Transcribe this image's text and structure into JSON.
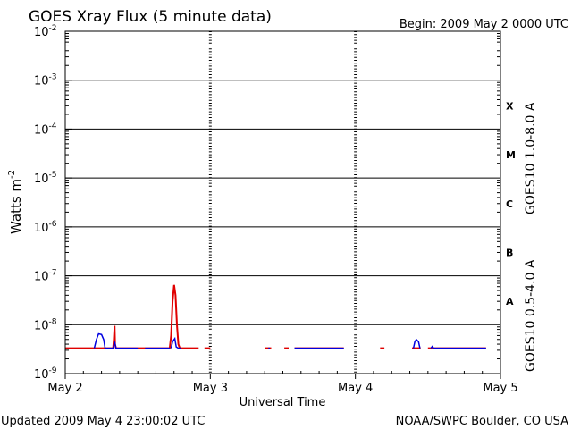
{
  "chart_data": {
    "type": "line",
    "title": "GOES Xray Flux (5 minute data)",
    "begin_label": "Begin:  2009 May 2 0000 UTC",
    "xlabel": "Universal Time",
    "ylabel_base": "Watts m",
    "ylabel_exp": "-2",
    "yscale": "log",
    "ylim": [
      1e-09,
      0.01
    ],
    "xlim": [
      0,
      3
    ],
    "x_ticks": [
      {
        "x": 0,
        "label": "May 2"
      },
      {
        "x": 1,
        "label": "May 3"
      },
      {
        "x": 2,
        "label": "May 4"
      },
      {
        "x": 3,
        "label": "May 5"
      }
    ],
    "y_ticks": [
      {
        "value": 0.01,
        "base": "10",
        "exp": "-2"
      },
      {
        "value": 0.001,
        "base": "10",
        "exp": "-3"
      },
      {
        "value": 0.0001,
        "base": "10",
        "exp": "-4"
      },
      {
        "value": 1e-05,
        "base": "10",
        "exp": "-5"
      },
      {
        "value": 1e-06,
        "base": "10",
        "exp": "-6"
      },
      {
        "value": 1e-07,
        "base": "10",
        "exp": "-7"
      },
      {
        "value": 1e-08,
        "base": "10",
        "exp": "-8"
      },
      {
        "value": 1e-09,
        "base": "10",
        "exp": "-9"
      }
    ],
    "flare_classes": [
      {
        "label": "X",
        "value": 0.0003
      },
      {
        "label": "M",
        "value": 3e-05
      },
      {
        "label": "C",
        "value": 3e-06
      },
      {
        "label": "B",
        "value": 3e-07
      },
      {
        "label": "A",
        "value": 3e-08
      }
    ],
    "series": [
      {
        "name": "GOES10 1.0-8.0 A",
        "color": "#e00000",
        "segments": [
          [
            [
              0,
              3.3e-09
            ],
            [
              0.33,
              3.3e-09
            ],
            [
              0.335,
              5e-09
            ],
            [
              0.34,
              9.5e-09
            ],
            [
              0.343,
              4e-09
            ],
            [
              0.35,
              3.3e-09
            ],
            [
              0.72,
              3.3e-09
            ],
            [
              0.73,
              6e-09
            ],
            [
              0.74,
              3e-08
            ],
            [
              0.75,
              6.5e-08
            ],
            [
              0.76,
              4e-08
            ],
            [
              0.77,
              1e-08
            ],
            [
              0.78,
              4e-09
            ],
            [
              0.79,
              3.3e-09
            ],
            [
              0.92,
              3.3e-09
            ]
          ],
          [
            [
              0.96,
              3.3e-09
            ],
            [
              1.0,
              3.3e-09
            ]
          ],
          [
            [
              1.38,
              3.3e-09
            ],
            [
              1.42,
              3.3e-09
            ]
          ],
          [
            [
              1.51,
              3.3e-09
            ],
            [
              1.54,
              3.3e-09
            ]
          ],
          [
            [
              1.58,
              3.3e-09
            ],
            [
              1.92,
              3.3e-09
            ]
          ],
          [
            [
              2.17,
              3.3e-09
            ],
            [
              2.2,
              3.3e-09
            ]
          ],
          [
            [
              2.39,
              3.3e-09
            ],
            [
              2.45,
              3.3e-09
            ]
          ],
          [
            [
              2.5,
              3.3e-09
            ],
            [
              2.9,
              3.3e-09
            ]
          ]
        ]
      },
      {
        "name": "GOES10 0.5-4.0 A",
        "color": "#0000e0",
        "segments": [
          [
            [
              0.2,
              3.3e-09
            ],
            [
              0.215,
              5e-09
            ],
            [
              0.23,
              6.5e-09
            ],
            [
              0.25,
              6.3e-09
            ],
            [
              0.265,
              5e-09
            ],
            [
              0.275,
              3.3e-09
            ],
            [
              0.33,
              3.3e-09
            ],
            [
              0.34,
              4.5e-09
            ],
            [
              0.35,
              3.3e-09
            ],
            [
              0.5,
              3.3e-09
            ]
          ],
          [
            [
              0.55,
              3.3e-09
            ],
            [
              0.72,
              3.3e-09
            ]
          ],
          [
            [
              0.73,
              3.3e-09
            ],
            [
              0.74,
              4.5e-09
            ],
            [
              0.755,
              5.2e-09
            ],
            [
              0.765,
              3.5e-09
            ],
            [
              0.78,
              3.3e-09
            ],
            [
              0.8,
              3.3e-09
            ]
          ],
          [
            [
              1.4,
              3.3e-09
            ],
            [
              1.41,
              3.3e-09
            ]
          ],
          [
            [
              1.58,
              3.3e-09
            ],
            [
              1.92,
              3.3e-09
            ]
          ],
          [
            [
              2.4,
              3.3e-09
            ],
            [
              2.41,
              4.5e-09
            ],
            [
              2.42,
              5e-09
            ],
            [
              2.435,
              4.5e-09
            ],
            [
              2.445,
              3.3e-09
            ]
          ],
          [
            [
              2.52,
              3.3e-09
            ],
            [
              2.53,
              3.6e-09
            ],
            [
              2.54,
              3.3e-09
            ],
            [
              2.9,
              3.3e-09
            ]
          ]
        ]
      }
    ],
    "grid": true
  },
  "footer": {
    "updated": "Updated 2009 May  4 23:00:02 UTC",
    "source": "NOAA/SWPC Boulder, CO USA"
  }
}
